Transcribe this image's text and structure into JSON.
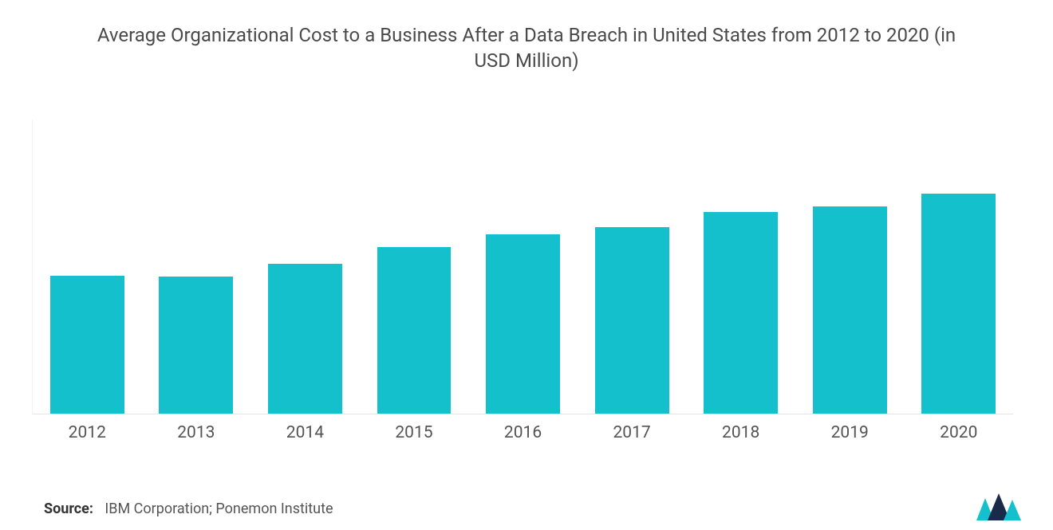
{
  "chart": {
    "type": "bar",
    "title": "Average Organizational Cost to a Business After a Data Breach in United States from 2012 to 2020 (in USD Million)",
    "title_color": "#4a4a4a",
    "title_fontsize": 24,
    "categories": [
      "2012",
      "2013",
      "2014",
      "2015",
      "2016",
      "2017",
      "2018",
      "2019",
      "2020"
    ],
    "values": [
      5.4,
      5.35,
      5.85,
      6.5,
      7.0,
      7.3,
      7.9,
      8.1,
      8.6
    ],
    "ylim_max": 11.5,
    "bar_color": "#13c0cb",
    "bar_width_pct": 68,
    "background_color": "#ffffff",
    "axis_color": "#e4e4e4",
    "xlabel_color": "#545454",
    "xlabel_fontsize": 21
  },
  "source": {
    "label": "Source:",
    "text": "IBM Corporation; Ponemon Institute",
    "color": "#555555",
    "fontsize": 18
  },
  "logo": {
    "name": "mordor-intelligence-logo",
    "color_dark": "#1a2b4a",
    "color_light": "#13c0cb"
  }
}
